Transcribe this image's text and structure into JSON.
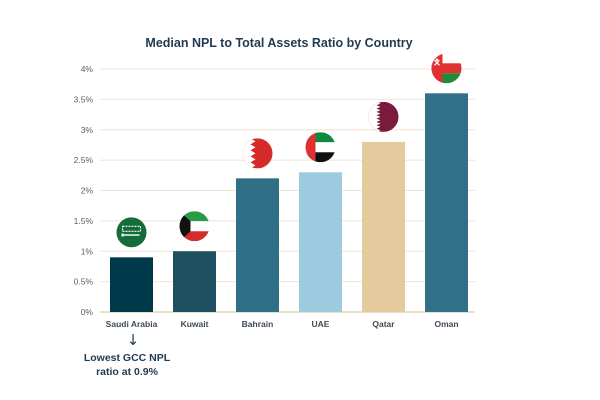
{
  "chart_data": {
    "type": "bar",
    "title": "Median NPL to Total Assets Ratio by Country",
    "xlabel": "",
    "ylabel": "",
    "categories": [
      "Saudi Arabia",
      "Kuwait",
      "Bahrain",
      "UAE",
      "Qatar",
      "Oman"
    ],
    "values": [
      0.9,
      1.0,
      2.2,
      2.3,
      2.8,
      3.6
    ],
    "value_unit": "%",
    "ylim": [
      0,
      4
    ],
    "yticks": [
      "0%",
      "0.5%",
      "1%",
      "1.5%",
      "2%",
      "2.5%",
      "3%",
      "3.5%",
      "4%"
    ],
    "grid": "horizontal",
    "legend": "none",
    "bar_colors": [
      "#003a4a",
      "#1f5062",
      "#2e6f87",
      "#9ccbe0",
      "#e3cb9d",
      "#327089"
    ],
    "flag_icons": [
      "saudi-flag-icon",
      "kuwait-flag-icon",
      "bahrain-flag-icon",
      "uae-flag-icon",
      "qatar-flag-icon",
      "oman-flag-icon"
    ],
    "annotation": {
      "arrow_icon": "down-arrow-icon",
      "line1": "Lowest GCC NPL",
      "line2": "ratio at 0.9%"
    }
  }
}
